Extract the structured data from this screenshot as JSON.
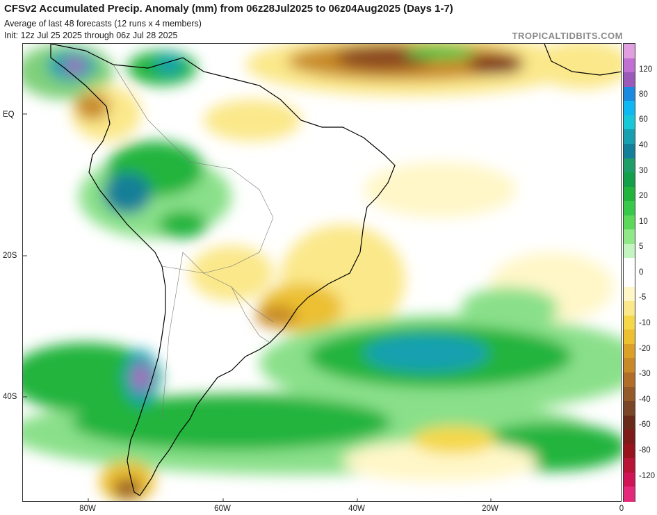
{
  "header": {
    "title": "CFSv2 Accumulated Precip. Anomaly (mm) from 06z28Jul2025 to 06z04Aug2025 (Days 1-7)",
    "subtitle": "Average of last 48 forecasts (12 runs x 4 members)",
    "init": "Init: 12z Jul 25 2025 through 06z Jul 28 2025",
    "brand": "TROPICALTIDBITS.COM"
  },
  "axes": {
    "lat_labels": [
      "EQ",
      "20S",
      "40S"
    ],
    "lon_labels": [
      "80W",
      "60W",
      "40W",
      "20W",
      "0"
    ]
  },
  "colorbar": {
    "labels": [
      "120",
      "80",
      "60",
      "40",
      "30",
      "20",
      "10",
      "5",
      "0",
      "-5",
      "-10",
      "-20",
      "-30",
      "-40",
      "-60",
      "-80",
      "-120"
    ],
    "colors": [
      "#e0a0e0",
      "#c070d0",
      "#9a5ab8",
      "#1a8ae0",
      "#0fb8f0",
      "#16c8d8",
      "#19a0b0",
      "#137f98",
      "#1f9e6a",
      "#14a04a",
      "#22b43c",
      "#38c84a",
      "#5ed85a",
      "#90e888",
      "#c4f4c0",
      "#ffffff",
      "#ffffff",
      "#fff7c8",
      "#fbe88a",
      "#f5d84a",
      "#ecc030",
      "#dba028",
      "#c88a28",
      "#b06e2a",
      "#955a2a",
      "#7a4628",
      "#6a2a1a",
      "#7e1a1a",
      "#98141c",
      "#b81436",
      "#d01456",
      "#e4287a"
    ]
  },
  "map": {
    "background_color": "#ffffff",
    "land_outline_color": "#000000"
  }
}
